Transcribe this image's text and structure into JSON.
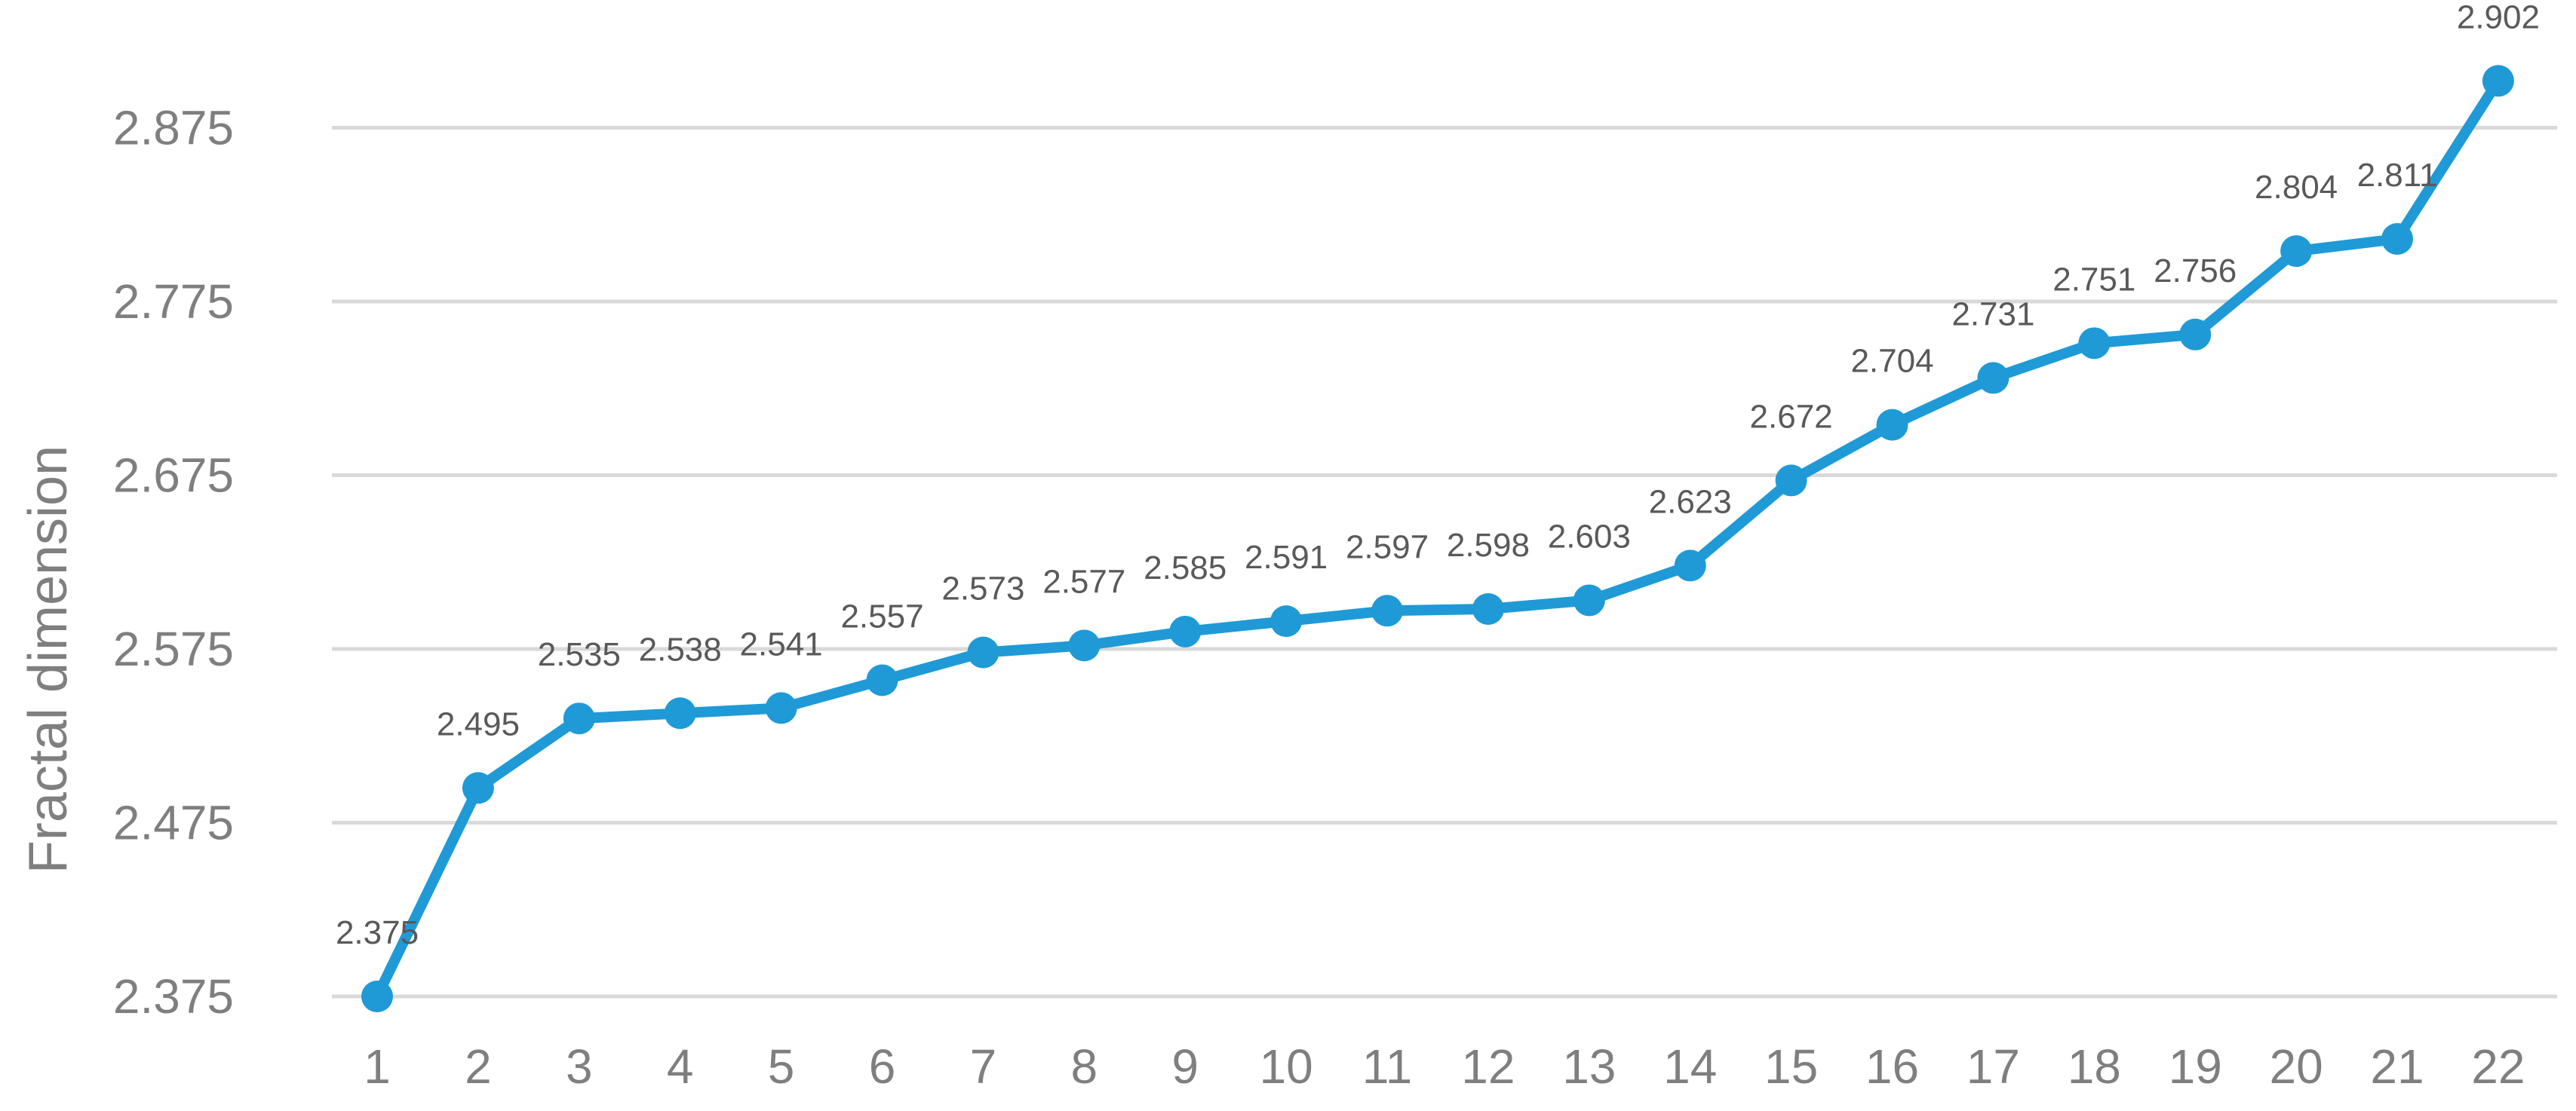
{
  "chart_data": {
    "type": "line",
    "title": "",
    "xlabel": "",
    "ylabel": "Fractal dimension",
    "categories": [
      "1",
      "2",
      "3",
      "4",
      "5",
      "6",
      "7",
      "8",
      "9",
      "10",
      "11",
      "12",
      "13",
      "14",
      "15",
      "16",
      "17",
      "18",
      "19",
      "20",
      "21",
      "22"
    ],
    "series": [
      {
        "values": [
          2.375,
          2.495,
          2.535,
          2.538,
          2.541,
          2.557,
          2.573,
          2.577,
          2.585,
          2.591,
          2.597,
          2.598,
          2.603,
          2.623,
          2.672,
          2.704,
          2.731,
          2.751,
          2.756,
          2.804,
          2.811,
          2.902
        ],
        "labels": [
          "2.375",
          "2.495",
          "2.535",
          "2.538",
          "2.541",
          "2.557",
          "2.573",
          "2.577",
          "2.585",
          "2.591",
          "2.597",
          "2.598",
          "2.603",
          "2.623",
          "2.672",
          "2.704",
          "2.731",
          "2.751",
          "2.756",
          "2.804",
          "2.811",
          "2.902"
        ],
        "color": "#1f9ad6"
      }
    ],
    "yticks": [
      "2.375",
      "2.475",
      "2.575",
      "2.675",
      "2.775",
      "2.875"
    ],
    "ylim": [
      2.375,
      2.9
    ],
    "grid": true,
    "legend": "none"
  }
}
